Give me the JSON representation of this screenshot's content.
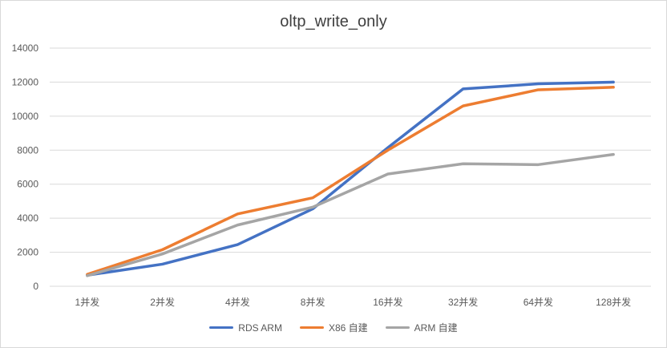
{
  "chart_data": {
    "type": "line",
    "title": "oltp_write_only",
    "categories": [
      "1并发",
      "2并发",
      "4并发",
      "8并发",
      "16并发",
      "32并发",
      "64并发",
      "128并发"
    ],
    "ylim": [
      0,
      14000
    ],
    "yticks": [
      0,
      2000,
      4000,
      6000,
      8000,
      10000,
      12000,
      14000
    ],
    "grid": true,
    "legend_position": "bottom",
    "series": [
      {
        "name": "RDS ARM",
        "color": "#4472c4",
        "values": [
          650,
          1300,
          2450,
          4550,
          8150,
          11600,
          11900,
          12000
        ]
      },
      {
        "name": "X86 自建",
        "color": "#ed7d31",
        "values": [
          700,
          2150,
          4250,
          5200,
          8000,
          10600,
          11550,
          11700
        ]
      },
      {
        "name": "ARM 自建",
        "color": "#a5a5a5",
        "values": [
          620,
          1900,
          3600,
          4650,
          6600,
          7200,
          7150,
          7750
        ]
      }
    ]
  }
}
